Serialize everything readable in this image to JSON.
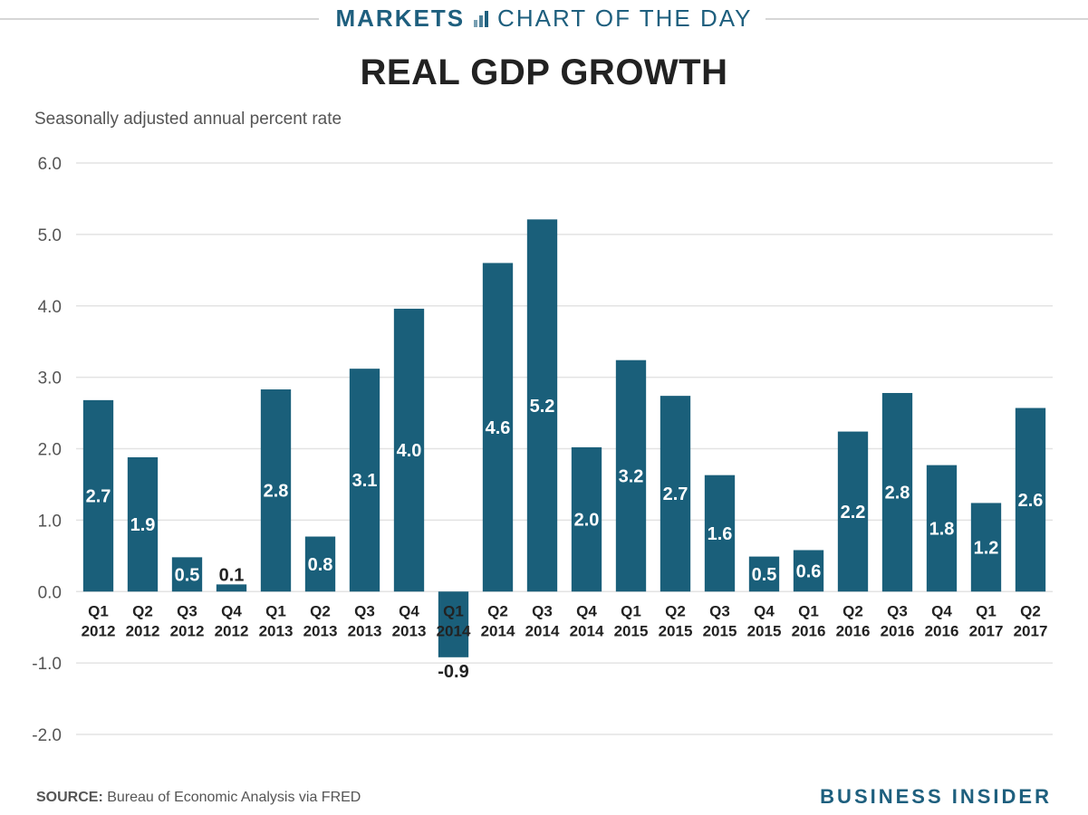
{
  "header": {
    "brand": "MARKETS",
    "section": "CHART OF THE DAY"
  },
  "footer": {
    "source_label": "SOURCE:",
    "source_text": "Bureau of Economic Analysis via FRED",
    "logo": "BUSINESS INSIDER"
  },
  "colors": {
    "bar": "#1a5f7a",
    "accent": "#1e5f7e",
    "grid": "#e3e3e3"
  },
  "chart_data": {
    "type": "bar",
    "title": "REAL GDP GROWTH",
    "subtitle": "Seasonally adjusted annual percent rate",
    "xlabel": "",
    "ylabel": "",
    "ylim": [
      -2.0,
      6.0
    ],
    "yticks": [
      "6.0",
      "5.0",
      "4.0",
      "3.0",
      "2.0",
      "1.0",
      "0.0",
      "-1.0",
      "-2.0"
    ],
    "grid": true,
    "legend": "none",
    "categories": [
      [
        "Q1",
        "2012"
      ],
      [
        "Q2",
        "2012"
      ],
      [
        "Q3",
        "2012"
      ],
      [
        "Q4",
        "2012"
      ],
      [
        "Q1",
        "2013"
      ],
      [
        "Q2",
        "2013"
      ],
      [
        "Q3",
        "2013"
      ],
      [
        "Q4",
        "2013"
      ],
      [
        "Q1",
        "2014"
      ],
      [
        "Q2",
        "2014"
      ],
      [
        "Q3",
        "2014"
      ],
      [
        "Q4",
        "2014"
      ],
      [
        "Q1",
        "2015"
      ],
      [
        "Q2",
        "2015"
      ],
      [
        "Q3",
        "2015"
      ],
      [
        "Q4",
        "2015"
      ],
      [
        "Q1",
        "2016"
      ],
      [
        "Q2",
        "2016"
      ],
      [
        "Q3",
        "2016"
      ],
      [
        "Q4",
        "2016"
      ],
      [
        "Q1",
        "2017"
      ],
      [
        "Q2",
        "2017"
      ]
    ],
    "values": [
      2.68,
      1.88,
      0.48,
      0.1,
      2.83,
      0.77,
      3.12,
      3.96,
      -0.92,
      4.6,
      5.21,
      2.02,
      3.24,
      2.74,
      1.63,
      0.49,
      0.58,
      2.24,
      2.78,
      1.77,
      1.24,
      2.57
    ],
    "labels": [
      "2.7",
      "1.9",
      "0.5",
      "0.1",
      "2.8",
      "0.8",
      "3.1",
      "4.0",
      "-0.9",
      "4.6",
      "5.2",
      "2.0",
      "3.2",
      "2.7",
      "1.6",
      "0.5",
      "0.6",
      "2.2",
      "2.8",
      "1.8",
      "1.2",
      "2.6"
    ]
  }
}
